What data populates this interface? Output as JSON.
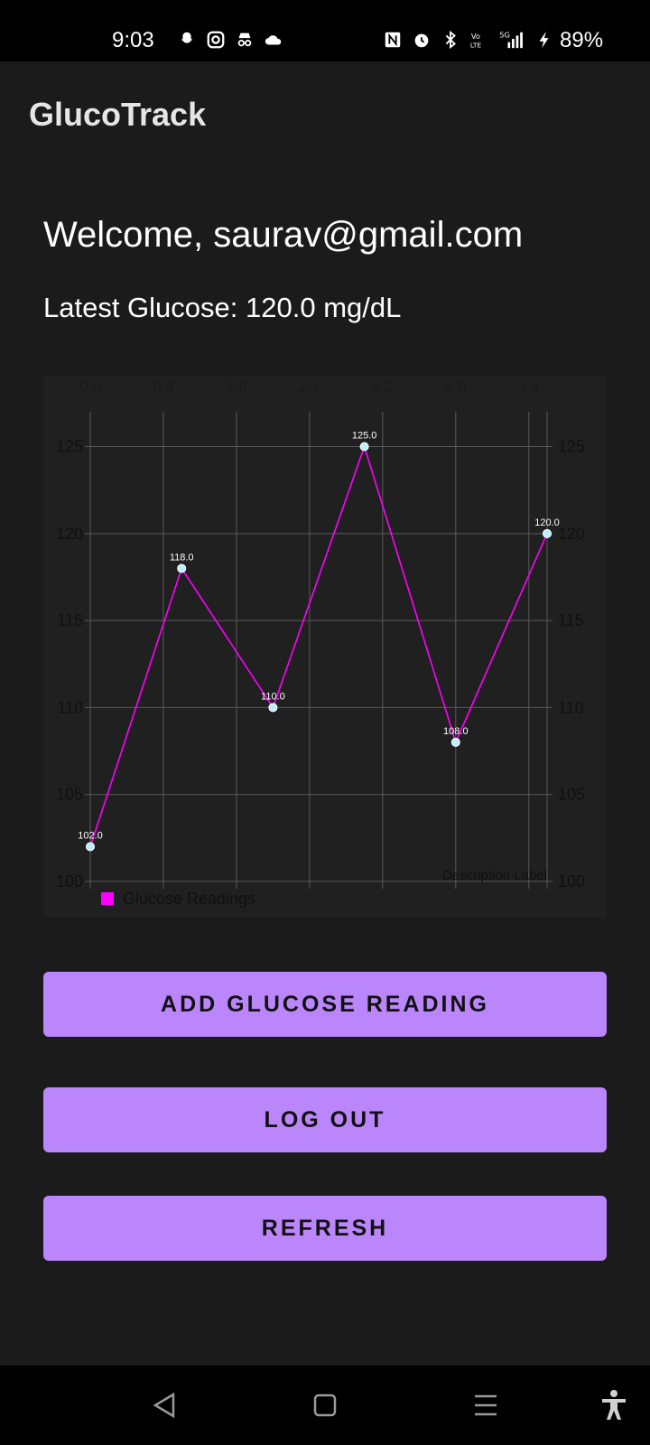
{
  "status_bar": {
    "time": "9:03",
    "battery": "89%",
    "left_icons": [
      "snapchat-icon",
      "instagram-icon",
      "incognito-icon",
      "cloud-icon"
    ],
    "right_icons": [
      "nfc-icon",
      "alarm-icon",
      "bluetooth-icon",
      "volte-icon",
      "5g-signal-icon",
      "charging-icon"
    ]
  },
  "app_bar": {
    "title": "GlucoTrack"
  },
  "main": {
    "welcome": "Welcome, saurav@gmail.com",
    "latest": "Latest Glucose: 120.0 mg/dL"
  },
  "chart_data": {
    "type": "line",
    "x": [
      0,
      1,
      2,
      3,
      4,
      5
    ],
    "series": [
      {
        "name": "Glucose Readings",
        "values": [
          102.0,
          118.0,
          110.0,
          125.0,
          108.0,
          120.0
        ],
        "color": "#ff00ff"
      }
    ],
    "value_labels": [
      "102.0",
      "118.0",
      "110.0",
      "125.0",
      "108.0",
      "120.0"
    ],
    "x_ticks": [
      "0.0",
      "0.8",
      "1.6",
      "2.4",
      "3.2",
      "4.0",
      "4.8"
    ],
    "x_tick_values": [
      0,
      0.8,
      1.6,
      2.4,
      3.2,
      4.0,
      4.8
    ],
    "y_ticks": [
      "100",
      "105",
      "110",
      "115",
      "120",
      "125"
    ],
    "y_tick_values": [
      100,
      105,
      110,
      115,
      120,
      125
    ],
    "xlim": [
      0,
      5
    ],
    "ylim": [
      100,
      127
    ],
    "description": "Description Label",
    "legend": "bottom-left",
    "grid": true,
    "background": "#202020",
    "grid_color": "#5a5a5a",
    "point_color": "#bdf0ff"
  },
  "buttons": {
    "add": "ADD GLUCOSE READING",
    "logout": "LOG OUT",
    "refresh": "REFRESH"
  },
  "colors": {
    "accent": "#bb86fc"
  },
  "nav_bar": {
    "icons": [
      "back-icon",
      "home-icon",
      "recents-icon",
      "accessibility-icon"
    ]
  }
}
